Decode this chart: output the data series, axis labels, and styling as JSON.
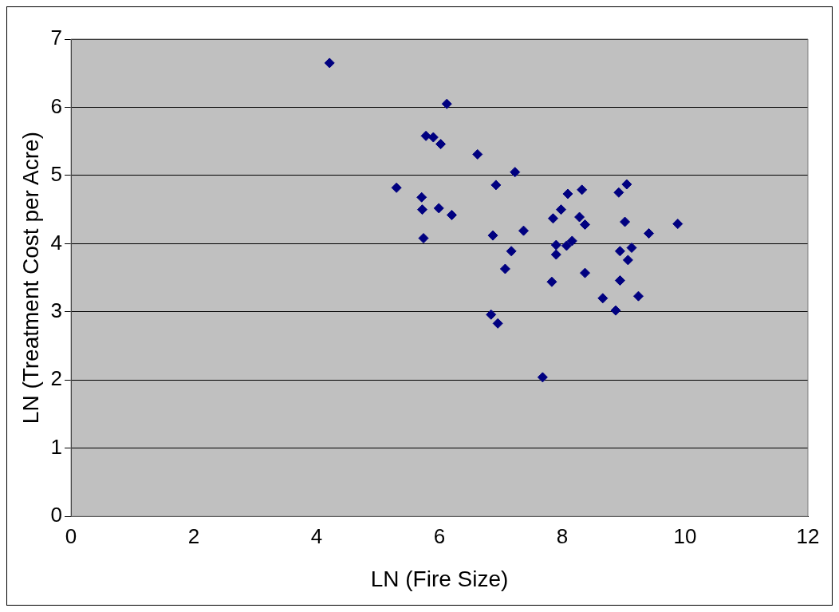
{
  "chart_data": {
    "type": "scatter",
    "xlabel": "LN (Fire Size)",
    "ylabel": "LN (Treatment Cost per Acre)",
    "x": [
      4.21,
      6.12,
      5.78,
      5.9,
      6.02,
      6.62,
      5.3,
      7.23,
      6.92,
      5.71,
      5.72,
      5.99,
      6.2,
      5.74,
      6.87,
      7.37,
      7.17,
      7.07,
      6.84,
      6.95,
      7.68,
      7.83,
      7.85,
      7.98,
      8.09,
      7.9,
      7.9,
      8.07,
      8.16,
      8.28,
      8.32,
      8.37,
      8.37,
      8.66,
      8.87,
      8.92,
      9.05,
      8.94,
      8.94,
      9.02,
      9.13,
      9.07,
      9.24,
      9.41,
      9.88
    ],
    "values": [
      6.65,
      6.05,
      5.58,
      5.56,
      5.46,
      5.31,
      4.82,
      5.05,
      4.86,
      4.68,
      4.5,
      4.52,
      4.42,
      4.08,
      4.12,
      4.19,
      3.89,
      3.63,
      2.96,
      2.83,
      2.04,
      3.44,
      4.37,
      4.5,
      4.73,
      3.98,
      3.84,
      3.97,
      4.04,
      4.39,
      4.79,
      4.28,
      3.57,
      3.2,
      3.02,
      4.75,
      4.87,
      3.89,
      3.46,
      4.32,
      3.94,
      3.76,
      3.23,
      4.15,
      4.29
    ],
    "color": "#000080",
    "marker": "diamond",
    "xlim": [
      0,
      12
    ],
    "xticks": [
      0,
      2,
      4,
      6,
      8,
      10,
      12
    ],
    "ylim": [
      0,
      7
    ],
    "yticks": [
      0,
      1,
      2,
      3,
      4,
      5,
      6,
      7
    ],
    "grid": "y",
    "legend": false
  }
}
